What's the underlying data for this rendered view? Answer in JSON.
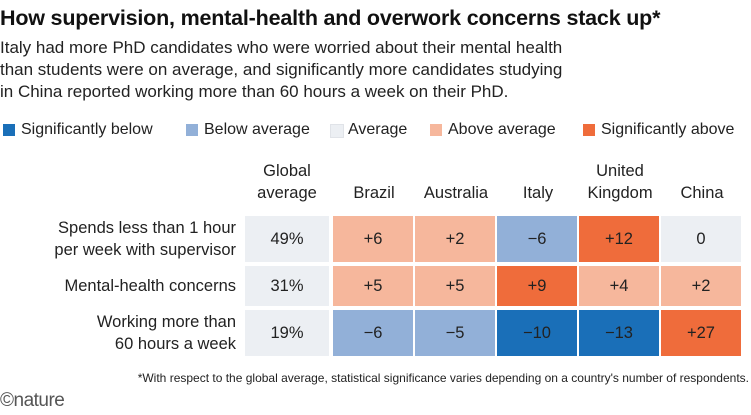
{
  "chart_data": {
    "type": "heatmap",
    "title": "How supervision, mental-health and overwork concerns stack up*",
    "subtitle": [
      "Italy had more PhD candidates who were worried about their mental health",
      "than students were on average, and significantly more candidates studying",
      "in China reported working more than 60 hours a week on their PhD."
    ],
    "legend": [
      {
        "key": "sig_below",
        "label": "Significantly below",
        "color": "#1a6fb8"
      },
      {
        "key": "below",
        "label": "Below average",
        "color": "#92b0d8"
      },
      {
        "key": "average",
        "label": "Average",
        "color": "#eceff3"
      },
      {
        "key": "above",
        "label": "Above average",
        "color": "#f6b79c"
      },
      {
        "key": "sig_above",
        "label": "Significantly above",
        "color": "#ef6c3b"
      }
    ],
    "global_header": [
      "Global",
      "average"
    ],
    "columns": [
      {
        "lines": [
          "Brazil"
        ]
      },
      {
        "lines": [
          "Australia"
        ]
      },
      {
        "lines": [
          "Italy"
        ]
      },
      {
        "lines": [
          "United",
          "Kingdom"
        ]
      },
      {
        "lines": [
          "China"
        ]
      }
    ],
    "rows": [
      {
        "label": [
          "Spends less than 1 hour",
          "per week with supervisor"
        ],
        "global": "49%",
        "values": [
          "+6",
          "+2",
          "−6",
          "+12",
          "0"
        ],
        "categories": [
          "above",
          "above",
          "below",
          "sig_above",
          "average"
        ]
      },
      {
        "label": [
          "Mental-health concerns"
        ],
        "global": "31%",
        "values": [
          "+5",
          "+5",
          "+9",
          "+4",
          "+2"
        ],
        "categories": [
          "above",
          "above",
          "sig_above",
          "above",
          "above"
        ]
      },
      {
        "label": [
          "Working more than",
          "60 hours a week"
        ],
        "global": "19%",
        "values": [
          "−6",
          "−5",
          "−10",
          "−13",
          "+27"
        ],
        "categories": [
          "below",
          "below",
          "sig_below",
          "sig_below",
          "sig_above"
        ]
      }
    ],
    "global_cell_color": "#eceff3",
    "footnote": "*With respect to the global average, statistical significance varies depending on a country's number of respondents."
  },
  "branding": {
    "logo": "©nature"
  }
}
